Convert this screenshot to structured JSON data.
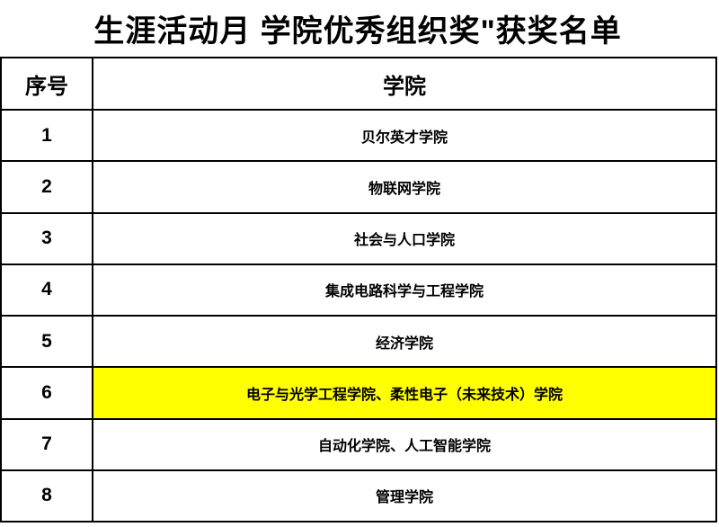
{
  "title": "生涯活动月 学院优秀组织奖\"获奖名单",
  "table": {
    "headers": {
      "no": "序号",
      "college": "学院"
    },
    "rows": [
      {
        "no": "1",
        "college": "贝尔英才学院",
        "highlight": false
      },
      {
        "no": "2",
        "college": "物联网学院",
        "highlight": false
      },
      {
        "no": "3",
        "college": "社会与人口学院",
        "highlight": false
      },
      {
        "no": "4",
        "college": "集成电路科学与工程学院",
        "highlight": false
      },
      {
        "no": "5",
        "college": "经济学院",
        "highlight": false
      },
      {
        "no": "6",
        "college": "电子与光学工程学院、柔性电子（未来技术）学院",
        "highlight": true
      },
      {
        "no": "7",
        "college": "自动化学院、人工智能学院",
        "highlight": false
      },
      {
        "no": "8",
        "college": "管理学院",
        "highlight": false
      }
    ]
  },
  "colors": {
    "highlight": "#FFFF00",
    "border": "#000000",
    "text": "#000000",
    "background": "#FFFFFF"
  }
}
